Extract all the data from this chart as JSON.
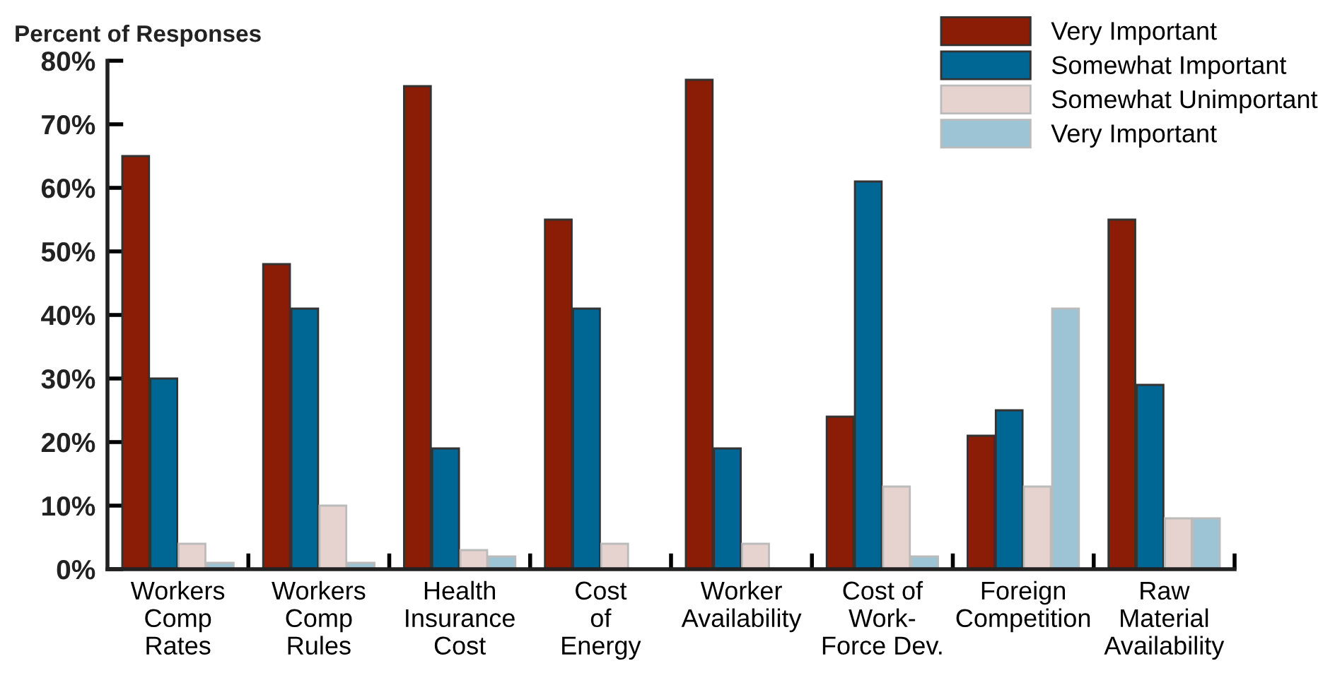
{
  "chart_data": {
    "type": "bar",
    "ylabel": "Percent of Responses",
    "categories": [
      "Workers\nComp\nRates",
      "Workers\nComp\nRules",
      "Health\nInsurance\nCost",
      "Cost\nof\nEnergy",
      "Worker\nAvailability",
      "Cost of\nWork-\nForce Dev.",
      "Foreign\nCompetition",
      "Raw\nMaterial\nAvailability"
    ],
    "series": [
      {
        "name": "Very Important",
        "color": "#8b1c06",
        "values": [
          65,
          48,
          76,
          55,
          77,
          24,
          21,
          55
        ]
      },
      {
        "name": "Somewhat Important",
        "color": "#006693",
        "values": [
          30,
          41,
          19,
          41,
          19,
          61,
          25,
          29
        ]
      },
      {
        "name": "Somewhat Unimportant",
        "color": "#e6d3cf",
        "values": [
          4,
          10,
          3,
          4,
          4,
          13,
          13,
          8
        ]
      },
      {
        "name": "Very Important",
        "color": "#9cc4d4",
        "values": [
          1,
          1,
          2,
          null,
          null,
          2,
          41,
          8
        ]
      }
    ],
    "ylim": [
      0,
      80
    ],
    "yticks": [
      {
        "value": 0,
        "label": "0%"
      },
      {
        "value": 10,
        "label": "10%"
      },
      {
        "value": 20,
        "label": "20%"
      },
      {
        "value": 30,
        "label": "30%"
      },
      {
        "value": 40,
        "label": "40%"
      },
      {
        "value": 50,
        "label": "50%"
      },
      {
        "value": 60,
        "label": "60%"
      },
      {
        "value": 70,
        "label": "70%"
      },
      {
        "value": 80,
        "label": "80%"
      }
    ],
    "grid": false,
    "legend": "top right"
  }
}
